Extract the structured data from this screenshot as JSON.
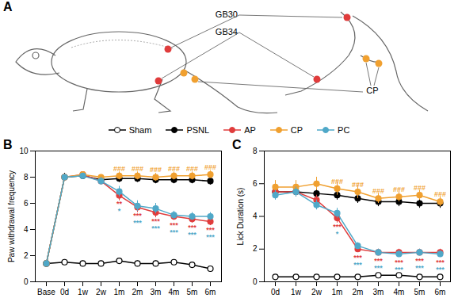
{
  "diagram": {
    "label": "A",
    "acupoints": [
      {
        "label": "GB30",
        "color": "#e03c3c"
      },
      {
        "label": "GB34",
        "color": "#e03c3c"
      },
      {
        "label": "CP",
        "color": "#f0a030"
      }
    ]
  },
  "chart_data": [
    {
      "type": "line",
      "title": "B",
      "y_label": "Paw withdrawal frequency",
      "categories": [
        "Base",
        "0d",
        "1w",
        "2w",
        "1m",
        "2m",
        "3m",
        "4m",
        "5m",
        "6m"
      ],
      "ylim": [
        0,
        10
      ],
      "yticks": [
        0,
        2,
        4,
        6,
        8,
        10
      ],
      "series": [
        {
          "name": "Sham",
          "color": "#000000",
          "marker": "circle_open",
          "values": [
            1.4,
            1.5,
            1.4,
            1.4,
            1.6,
            1.4,
            1.4,
            1.5,
            1.3,
            1.0
          ],
          "errors": [
            0.2,
            0.2,
            0.2,
            0.2,
            0.2,
            0.2,
            0.2,
            0.2,
            0.2,
            0.2
          ]
        },
        {
          "name": "PSNL",
          "color": "#000000",
          "marker": "circle",
          "values": [
            1.4,
            8.0,
            8.1,
            7.8,
            7.9,
            7.9,
            7.8,
            7.8,
            7.8,
            7.7
          ],
          "errors": [
            0.2,
            0.3,
            0.2,
            0.3,
            0.3,
            0.3,
            0.3,
            0.3,
            0.3,
            0.3
          ]
        },
        {
          "name": "AP",
          "color": "#e03c3c",
          "marker": "circle",
          "values": [
            1.4,
            8.0,
            8.2,
            7.7,
            6.6,
            5.7,
            5.3,
            5.0,
            4.8,
            4.6
          ],
          "errors": [
            0.2,
            0.2,
            0.2,
            0.3,
            0.4,
            0.4,
            0.4,
            0.3,
            0.3,
            0.3
          ]
        },
        {
          "name": "CP",
          "color": "#f0a030",
          "marker": "circle",
          "values": [
            1.4,
            8.0,
            8.2,
            8.0,
            8.1,
            8.1,
            8.0,
            8.1,
            8.1,
            8.2
          ],
          "errors": [
            0.2,
            0.2,
            0.2,
            0.2,
            0.3,
            0.3,
            0.3,
            0.3,
            0.3,
            0.3
          ]
        },
        {
          "name": "PC",
          "color": "#4fa8c8",
          "marker": "circle",
          "values": [
            1.4,
            8.0,
            8.1,
            7.7,
            6.9,
            5.8,
            5.6,
            5.1,
            5.0,
            5.0
          ],
          "errors": [
            0.2,
            0.2,
            0.2,
            0.3,
            0.4,
            0.4,
            0.4,
            0.3,
            0.3,
            0.3
          ]
        }
      ],
      "annotations": [
        {
          "x": "1m",
          "text": "###",
          "series": "CP"
        },
        {
          "x": "2m",
          "text": "###",
          "series": "CP"
        },
        {
          "x": "3m",
          "text": "###",
          "series": "CP"
        },
        {
          "x": "4m",
          "text": "###",
          "series": "CP"
        },
        {
          "x": "5m",
          "text": "###",
          "series": "CP"
        },
        {
          "x": "6m",
          "text": "###",
          "series": "CP"
        },
        {
          "x": "1m",
          "text": "**",
          "series": "AP"
        },
        {
          "x": "2m",
          "text": "***",
          "series": "AP"
        },
        {
          "x": "3m",
          "text": "***",
          "series": "AP"
        },
        {
          "x": "4m",
          "text": "***",
          "series": "AP"
        },
        {
          "x": "5m",
          "text": "***",
          "series": "AP"
        },
        {
          "x": "6m",
          "text": "***",
          "series": "AP"
        },
        {
          "x": "1m",
          "text": "*",
          "series": "PC"
        },
        {
          "x": "2m",
          "text": "***",
          "series": "PC"
        },
        {
          "x": "3m",
          "text": "***",
          "series": "PC"
        },
        {
          "x": "4m",
          "text": "***",
          "series": "PC"
        },
        {
          "x": "5m",
          "text": "***",
          "series": "PC"
        },
        {
          "x": "6m",
          "text": "***",
          "series": "PC"
        }
      ]
    },
    {
      "type": "line",
      "title": "C",
      "y_label": "Lick Duration (s)",
      "categories": [
        "0d",
        "1w",
        "2w",
        "1m",
        "2m",
        "3m",
        "4m",
        "5m",
        "6m"
      ],
      "ylim": [
        0,
        8
      ],
      "yticks": [
        0,
        2,
        4,
        6,
        8
      ],
      "series": [
        {
          "name": "Sham",
          "color": "#000000",
          "marker": "circle_open",
          "values": [
            0.3,
            0.3,
            0.3,
            0.3,
            0.3,
            0.4,
            0.4,
            0.3,
            0.3
          ],
          "errors": [
            0.1,
            0.1,
            0.1,
            0.1,
            0.1,
            0.1,
            0.1,
            0.1,
            0.1
          ]
        },
        {
          "name": "PSNL",
          "color": "#000000",
          "marker": "circle",
          "values": [
            5.5,
            5.5,
            5.4,
            5.3,
            5.1,
            4.9,
            4.9,
            4.8,
            4.8
          ],
          "errors": [
            0.3,
            0.3,
            0.3,
            0.3,
            0.3,
            0.3,
            0.3,
            0.3,
            0.3
          ]
        },
        {
          "name": "AP",
          "color": "#e03c3c",
          "marker": "circle",
          "values": [
            5.5,
            5.5,
            5.0,
            3.9,
            2.0,
            1.8,
            1.8,
            1.8,
            1.8
          ],
          "errors": [
            0.3,
            0.3,
            0.3,
            0.3,
            0.2,
            0.2,
            0.2,
            0.2,
            0.2
          ]
        },
        {
          "name": "CP",
          "color": "#f0a030",
          "marker": "circle",
          "values": [
            5.8,
            5.8,
            6.0,
            5.7,
            5.5,
            5.1,
            5.2,
            5.3,
            4.9
          ],
          "errors": [
            0.4,
            0.4,
            0.4,
            0.4,
            0.4,
            0.3,
            0.3,
            0.3,
            0.3
          ]
        },
        {
          "name": "PC",
          "color": "#4fa8c8",
          "marker": "circle",
          "values": [
            5.3,
            5.5,
            4.7,
            4.2,
            2.2,
            1.8,
            1.7,
            1.8,
            1.7
          ],
          "errors": [
            0.3,
            0.3,
            0.3,
            0.3,
            0.2,
            0.2,
            0.2,
            0.2,
            0.2
          ]
        }
      ],
      "annotations": [
        {
          "x": "1m",
          "text": "###",
          "series": "CP"
        },
        {
          "x": "2m",
          "text": "###",
          "series": "CP"
        },
        {
          "x": "3m",
          "text": "###",
          "series": "CP"
        },
        {
          "x": "4m",
          "text": "###",
          "series": "CP"
        },
        {
          "x": "5m",
          "text": "###",
          "series": "CP"
        },
        {
          "x": "6m",
          "text": "###",
          "series": "CP"
        },
        {
          "x": "1m",
          "text": "***",
          "series": "AP"
        },
        {
          "x": "2m",
          "text": "***",
          "series": "AP"
        },
        {
          "x": "3m",
          "text": "***",
          "series": "AP"
        },
        {
          "x": "4m",
          "text": "***",
          "series": "AP"
        },
        {
          "x": "5m",
          "text": "***",
          "series": "AP"
        },
        {
          "x": "6m",
          "text": "***",
          "series": "AP"
        },
        {
          "x": "1m",
          "text": "*",
          "series": "PC"
        },
        {
          "x": "2m",
          "text": "***",
          "series": "PC"
        },
        {
          "x": "3m",
          "text": "***",
          "series": "PC"
        },
        {
          "x": "4m",
          "text": "***",
          "series": "PC"
        },
        {
          "x": "5m",
          "text": "***",
          "series": "PC"
        },
        {
          "x": "6m",
          "text": "***",
          "series": "PC"
        }
      ]
    }
  ]
}
